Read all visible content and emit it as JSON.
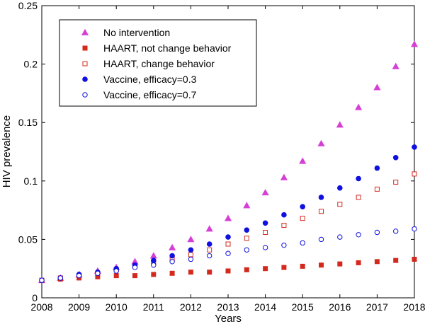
{
  "chart_data": {
    "type": "scatter",
    "title": "",
    "xlabel": "Years",
    "ylabel": "HIV prevalence",
    "xlim": [
      2008,
      2018
    ],
    "ylim": [
      0,
      0.25
    ],
    "xticks": [
      "2008",
      "2009",
      "2010",
      "2011",
      "2012",
      "2013",
      "2014",
      "2015",
      "2016",
      "2017",
      "2018"
    ],
    "yticks": [
      "0",
      "0.05",
      "0.1",
      "0.15",
      "0.2",
      "0.25"
    ],
    "legend_position": "top-left",
    "series": [
      {
        "name": "No intervention",
        "marker": "triangle",
        "filled": true,
        "color": "#d63fd6",
        "x": [
          2008.0,
          2008.5,
          2009.0,
          2009.5,
          2010.0,
          2010.5,
          2011.0,
          2011.5,
          2012.0,
          2012.5,
          2013.0,
          2013.5,
          2014.0,
          2014.5,
          2015.0,
          2015.5,
          2016.0,
          2016.5,
          2017.0,
          2017.5,
          2018.0
        ],
        "y": [
          0.015,
          0.017,
          0.02,
          0.023,
          0.026,
          0.031,
          0.036,
          0.043,
          0.05,
          0.059,
          0.068,
          0.079,
          0.09,
          0.103,
          0.117,
          0.132,
          0.148,
          0.163,
          0.18,
          0.198,
          0.217
        ]
      },
      {
        "name": "HAART, not change behavior",
        "marker": "square",
        "filled": true,
        "color": "#d42a1e",
        "x": [
          2008.0,
          2008.5,
          2009.0,
          2009.5,
          2010.0,
          2010.5,
          2011.0,
          2011.5,
          2012.0,
          2012.5,
          2013.0,
          2013.5,
          2014.0,
          2014.5,
          2015.0,
          2015.5,
          2016.0,
          2016.5,
          2017.0,
          2017.5,
          2018.0
        ],
        "y": [
          0.015,
          0.016,
          0.017,
          0.018,
          0.019,
          0.019,
          0.02,
          0.021,
          0.022,
          0.022,
          0.023,
          0.024,
          0.025,
          0.026,
          0.027,
          0.028,
          0.029,
          0.03,
          0.031,
          0.032,
          0.033
        ]
      },
      {
        "name": "HAART, change behavior",
        "marker": "square",
        "filled": false,
        "color": "#d42a1e",
        "x": [
          2008.0,
          2008.5,
          2009.0,
          2009.5,
          2010.0,
          2010.5,
          2011.0,
          2011.5,
          2012.0,
          2012.5,
          2013.0,
          2013.5,
          2014.0,
          2014.5,
          2015.0,
          2015.5,
          2016.0,
          2016.5,
          2017.0,
          2017.5,
          2018.0
        ],
        "y": [
          0.015,
          0.017,
          0.019,
          0.021,
          0.024,
          0.027,
          0.03,
          0.033,
          0.037,
          0.041,
          0.046,
          0.051,
          0.056,
          0.062,
          0.068,
          0.074,
          0.08,
          0.086,
          0.093,
          0.099,
          0.106
        ]
      },
      {
        "name": "Vaccine, efficacy=0.3",
        "marker": "circle",
        "filled": true,
        "color": "#1010e0",
        "x": [
          2008.0,
          2008.5,
          2009.0,
          2009.5,
          2010.0,
          2010.5,
          2011.0,
          2011.5,
          2012.0,
          2012.5,
          2013.0,
          2013.5,
          2014.0,
          2014.5,
          2015.0,
          2015.5,
          2016.0,
          2016.5,
          2017.0,
          2017.5,
          2018.0
        ],
        "y": [
          0.015,
          0.017,
          0.02,
          0.022,
          0.025,
          0.028,
          0.032,
          0.036,
          0.041,
          0.046,
          0.052,
          0.058,
          0.064,
          0.071,
          0.078,
          0.086,
          0.094,
          0.102,
          0.111,
          0.12,
          0.129
        ]
      },
      {
        "name": "Vaccine, efficacy=0.7",
        "marker": "circle",
        "filled": false,
        "color": "#1010e0",
        "x": [
          2008.0,
          2008.5,
          2009.0,
          2009.5,
          2010.0,
          2010.5,
          2011.0,
          2011.5,
          2012.0,
          2012.5,
          2013.0,
          2013.5,
          2014.0,
          2014.5,
          2015.0,
          2015.5,
          2016.0,
          2016.5,
          2017.0,
          2017.5,
          2018.0
        ],
        "y": [
          0.015,
          0.017,
          0.019,
          0.021,
          0.023,
          0.026,
          0.028,
          0.031,
          0.033,
          0.036,
          0.038,
          0.041,
          0.043,
          0.045,
          0.047,
          0.05,
          0.052,
          0.054,
          0.056,
          0.057,
          0.059
        ]
      }
    ]
  }
}
